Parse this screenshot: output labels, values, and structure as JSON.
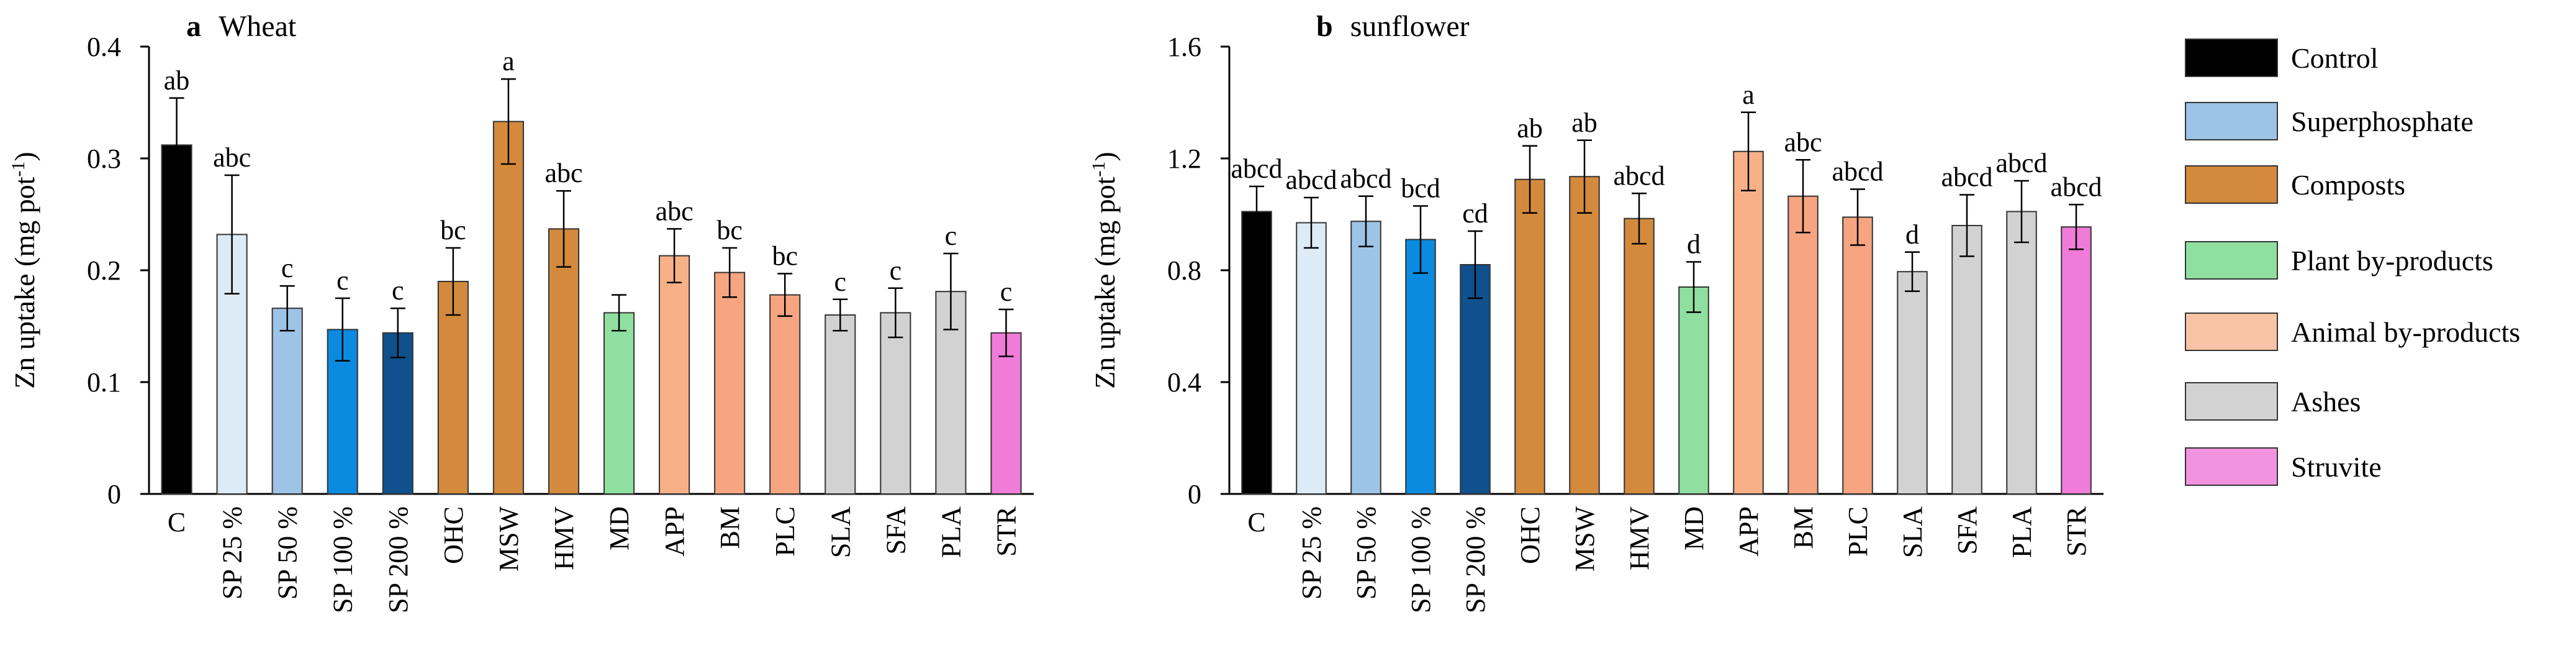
{
  "chart_data": [
    {
      "type": "bar",
      "panel_label": "a",
      "title": "Wheat",
      "ylabel": "Zn uptake (mg pot",
      "ylabel_sup": "-1",
      "ylabel_close": ")",
      "ylim": [
        0,
        0.4
      ],
      "yticks": [
        0,
        0.1,
        0.2,
        0.3,
        0.4
      ],
      "ytick_labels": [
        "0",
        "0.1",
        "0.2",
        "0.3",
        "0.4"
      ],
      "categories": [
        "C",
        "SP 25 %",
        "SP 50 %",
        "SP 100 %",
        "SP 200 %",
        "OHC",
        "MSW",
        "HMV",
        "MD",
        "APP",
        "BM",
        "PLC",
        "SLA",
        "SFA",
        "PLA",
        "STR"
      ],
      "values": [
        0.312,
        0.232,
        0.166,
        0.147,
        0.144,
        0.19,
        0.333,
        0.237,
        0.162,
        0.213,
        0.198,
        0.178,
        0.16,
        0.162,
        0.181,
        0.144
      ],
      "errors": [
        0.042,
        0.053,
        0.02,
        0.028,
        0.022,
        0.03,
        0.038,
        0.034,
        0.016,
        0.024,
        0.022,
        0.019,
        0.014,
        0.022,
        0.034,
        0.021
      ],
      "letters": [
        "ab",
        "abc",
        "c",
        "c",
        "c",
        "bc",
        "a",
        "abc",
        "",
        "abc",
        "bc",
        "bc",
        "c",
        "c",
        "c",
        "c"
      ],
      "colors": [
        "#000000",
        "#ddebf7",
        "#9dc3e6",
        "#0a8be0",
        "#10508d",
        "#d38a3c",
        "#d38a3c",
        "#d38a3c",
        "#8fe0a0",
        "#f8b187",
        "#f6a580",
        "#f6a580",
        "#d2d2d2",
        "#d2d2d2",
        "#d2d2d2",
        "#f07bd8"
      ]
    },
    {
      "type": "bar",
      "panel_label": "b",
      "title": "sunflower",
      "ylabel": "Zn uptake (mg pot",
      "ylabel_sup": "-1",
      "ylabel_close": ")",
      "ylim": [
        0,
        1.6
      ],
      "yticks": [
        0,
        0.4,
        0.8,
        1.2,
        1.6
      ],
      "ytick_labels": [
        "0",
        "0.4",
        "0.8",
        "1.2",
        "1.6"
      ],
      "categories": [
        "C",
        "SP 25 %",
        "SP 50 %",
        "SP 100 %",
        "SP 200 %",
        "OHC",
        "MSW",
        "HMV",
        "MD",
        "APP",
        "BM",
        "PLC",
        "SLA",
        "SFA",
        "PLA",
        "STR"
      ],
      "values": [
        1.01,
        0.97,
        0.975,
        0.91,
        0.82,
        1.125,
        1.135,
        0.985,
        0.74,
        1.225,
        1.065,
        0.99,
        0.795,
        0.96,
        1.01,
        0.955
      ],
      "errors": [
        0.09,
        0.09,
        0.09,
        0.12,
        0.12,
        0.12,
        0.13,
        0.09,
        0.09,
        0.14,
        0.13,
        0.1,
        0.07,
        0.11,
        0.11,
        0.08
      ],
      "letters": [
        "abcd",
        "abcd",
        "abcd",
        "bcd",
        "cd",
        "ab",
        "ab",
        "abcd",
        "d",
        "a",
        "abc",
        "abcd",
        "d",
        "abcd",
        "abcd",
        "abcd"
      ],
      "colors": [
        "#000000",
        "#ddebf7",
        "#9dc3e6",
        "#0a8be0",
        "#10508d",
        "#d38a3c",
        "#d38a3c",
        "#d38a3c",
        "#8fe0a0",
        "#f8b187",
        "#f6a580",
        "#f6a580",
        "#d2d2d2",
        "#d2d2d2",
        "#d2d2d2",
        "#f07bd8"
      ]
    }
  ],
  "legend": [
    {
      "label": "Control",
      "color": "#000000"
    },
    {
      "label": "Superphosphate",
      "color": "#9dc3e6"
    },
    {
      "label": "Composts",
      "color": "#d38a3c"
    },
    {
      "label": "Plant by-products",
      "color": "#8fe0a0"
    },
    {
      "label": "Animal by-products",
      "color": "#f9c3a6"
    },
    {
      "label": "Ashes",
      "color": "#d2d2d2"
    },
    {
      "label": "Struvite",
      "color": "#f293e0"
    }
  ]
}
